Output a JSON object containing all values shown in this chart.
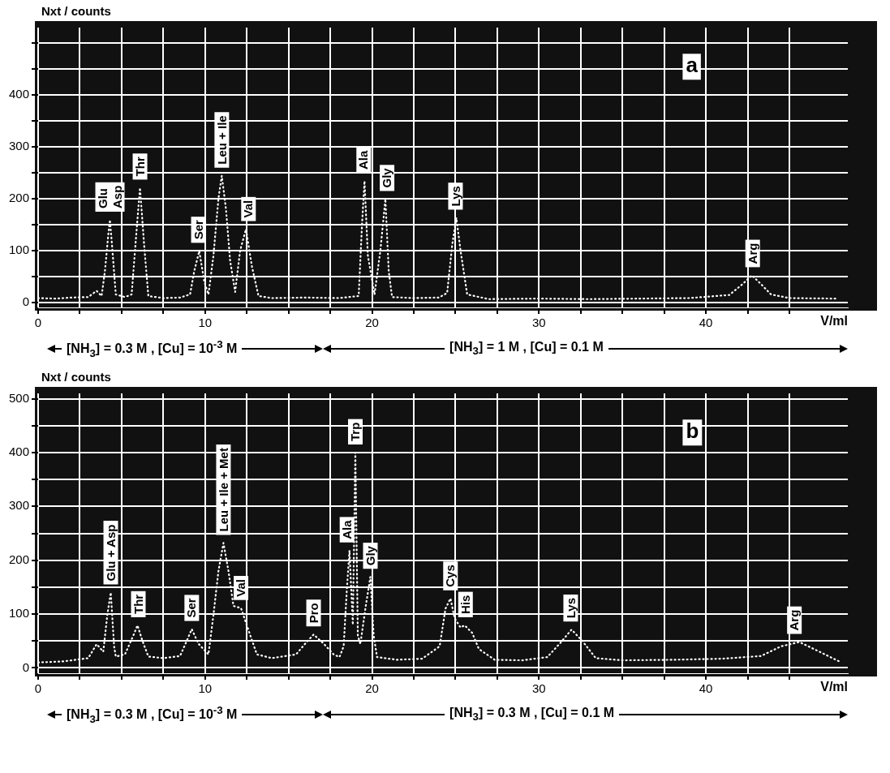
{
  "chart_data": [
    {
      "type": "line",
      "title": "a",
      "ylabel": "Nxt / counts",
      "xlabel": "V/ml",
      "line_style": "dotted",
      "marker": "none",
      "grid": true,
      "legend": false,
      "xlim": [
        0,
        48.5
      ],
      "xticks": [
        0,
        {
          "value": 2.5,
          "label": null
        },
        {
          "value": 5,
          "label": null
        },
        {
          "value": 7.5,
          "label": null
        },
        10,
        {
          "value": 12.5,
          "label": null
        },
        {
          "value": 15,
          "label": null
        },
        {
          "value": 17.5,
          "label": null
        },
        20,
        {
          "value": 22.5,
          "label": null
        },
        {
          "value": 25,
          "label": null
        },
        {
          "value": 27.5,
          "label": null
        },
        30,
        {
          "value": 32.5,
          "label": null
        },
        {
          "value": 35,
          "label": null
        },
        {
          "value": 37.5,
          "label": null
        },
        40,
        {
          "value": 42.5,
          "label": null
        },
        {
          "value": 45,
          "label": null
        }
      ],
      "ylim": [
        -10,
        530
      ],
      "yticks": [
        0,
        {
          "value": 50,
          "label": null
        },
        100,
        {
          "value": 150,
          "label": null
        },
        200,
        {
          "value": 250,
          "label": null
        },
        300,
        {
          "value": 350,
          "label": null
        },
        400,
        {
          "value": 450,
          "label": null
        },
        {
          "value": 500,
          "label": null
        }
      ],
      "series": [
        {
          "color": "#ffffff",
          "x": [
            0,
            1,
            2,
            3,
            3.5,
            3.8,
            4.0,
            4.2,
            4.3,
            4.45,
            4.65,
            5.2,
            5.6,
            5.85,
            6.1,
            6.35,
            6.6,
            7.5,
            8.5,
            9.1,
            9.35,
            9.65,
            9.95,
            10.2,
            10.5,
            10.8,
            11.0,
            11.25,
            11.5,
            11.8,
            12.1,
            12.45,
            12.8,
            13.2,
            14,
            16,
            18,
            19.2,
            19.4,
            19.55,
            19.75,
            20.15,
            20.5,
            20.8,
            21.0,
            21.2,
            22.5,
            24,
            24.5,
            24.8,
            25.05,
            25.3,
            25.7,
            27,
            30,
            33,
            36,
            39,
            41.4,
            42.2,
            42.75,
            43.3,
            43.9,
            45,
            47.8
          ],
          "values": [
            8,
            7,
            9,
            10,
            22,
            12,
            60,
            130,
            159,
            100,
            15,
            10,
            15,
            120,
            221,
            110,
            12,
            8,
            9,
            15,
            60,
            99,
            40,
            15,
            90,
            200,
            244,
            180,
            80,
            20,
            100,
            141,
            70,
            12,
            8,
            9,
            8,
            12,
            150,
            234,
            90,
            15,
            100,
            199,
            60,
            10,
            8,
            9,
            18,
            110,
            163,
            100,
            15,
            6,
            7,
            6,
            7,
            8,
            14,
            35,
            52,
            35,
            15,
            8,
            7
          ]
        }
      ],
      "annotations": [
        {
          "text": "Glu\nAsp",
          "x": 4.3,
          "y": 159
        },
        {
          "text": "Thr",
          "x": 6.1,
          "y": 221
        },
        {
          "text": "Ser",
          "x": 9.6,
          "y": 99
        },
        {
          "text": "Leu + Ile",
          "x": 11.0,
          "y": 244
        },
        {
          "text": "Val",
          "x": 12.6,
          "y": 141
        },
        {
          "text": "Ala",
          "x": 19.5,
          "y": 234
        },
        {
          "text": "Gly",
          "x": 20.9,
          "y": 199
        },
        {
          "text": "Lys",
          "x": 25.0,
          "y": 163
        },
        {
          "text": "Arg",
          "x": 42.8,
          "y": 52
        },
        "[NH$_{3}$] = 0.3 M , [Cu] = 10$^{-3}$ M",
        "[NH$_{3}$] = 1 M , [Cu] = 0.1 M"
      ]
    },
    {
      "type": "line",
      "title": "b",
      "ylabel": "Nxt / counts",
      "xlabel": "V/ml",
      "line_style": "dotted",
      "marker": "none",
      "grid": true,
      "legend": false,
      "xlim": [
        0,
        48.5
      ],
      "xticks": [
        0,
        {
          "value": 2.5,
          "label": null
        },
        {
          "value": 5,
          "label": null
        },
        {
          "value": 7.5,
          "label": null
        },
        10,
        {
          "value": 12.5,
          "label": null
        },
        {
          "value": 15,
          "label": null
        },
        {
          "value": 17.5,
          "label": null
        },
        20,
        {
          "value": 22.5,
          "label": null
        },
        {
          "value": 25,
          "label": null
        },
        {
          "value": 27.5,
          "label": null
        },
        30,
        {
          "value": 32.5,
          "label": null
        },
        {
          "value": 35,
          "label": null
        },
        {
          "value": 37.5,
          "label": null
        },
        40,
        {
          "value": 42.5,
          "label": null
        },
        {
          "value": 45,
          "label": null
        }
      ],
      "ylim": [
        -10,
        510
      ],
      "yticks": [
        0,
        {
          "value": 50,
          "label": null
        },
        100,
        {
          "value": 150,
          "label": null
        },
        200,
        {
          "value": 250,
          "label": null
        },
        300,
        {
          "value": 350,
          "label": null
        },
        400,
        {
          "value": 450,
          "label": null
        },
        500
      ],
      "series": [
        {
          "color": "#ffffff",
          "x": [
            0,
            1.5,
            3,
            3.5,
            3.9,
            4.15,
            4.35,
            4.55,
            4.65,
            5.2,
            5.7,
            5.95,
            6.25,
            6.6,
            7.5,
            8.5,
            8.9,
            9.2,
            9.6,
            10.2,
            10.5,
            10.8,
            11.1,
            11.4,
            11.7,
            12.15,
            12.6,
            13.1,
            14,
            15.45,
            16.0,
            16.5,
            17.1,
            17.7,
            18.05,
            18.3,
            18.5,
            18.65,
            18.85,
            19.0,
            19.15,
            19.3,
            19.6,
            19.9,
            20.1,
            20.3,
            21.5,
            23,
            24.05,
            24.4,
            24.7,
            24.95,
            25.3,
            25.55,
            26.0,
            26.4,
            27.35,
            29,
            30.5,
            31.3,
            31.95,
            32.6,
            33.4,
            35,
            38,
            41,
            43.3,
            44.5,
            45.6,
            46.8,
            48.05
          ],
          "values": [
            10,
            12,
            18,
            44,
            30,
            100,
            140,
            40,
            21,
            25,
            60,
            79,
            50,
            21,
            18,
            22,
            50,
            72,
            45,
            25,
            98,
            180,
            232,
            180,
            115,
            111,
            70,
            25,
            18,
            25,
            45,
            62,
            45,
            25,
            20,
            40,
            150,
            218,
            80,
            400,
            60,
            44,
            110,
            169,
            60,
            20,
            15,
            17,
            40,
            110,
            129,
            92,
            75,
            79,
            65,
            35,
            15,
            14,
            20,
            47,
            71,
            50,
            18,
            14,
            15,
            17,
            22,
            40,
            48,
            30,
            11
          ]
        }
      ],
      "annotations": [
        {
          "text": "Glu + Asp",
          "x": 4.35,
          "y": 140
        },
        {
          "text": "Thr",
          "x": 6.0,
          "y": 79
        },
        {
          "text": "Ser",
          "x": 9.2,
          "y": 72
        },
        {
          "text": "Leu + Ile + Met",
          "x": 11.1,
          "y": 232
        },
        {
          "text": "Val",
          "x": 12.15,
          "y": 111
        },
        {
          "text": "Pro",
          "x": 16.5,
          "y": 62
        },
        {
          "text": "Ala",
          "x": 18.5,
          "y": 218
        },
        {
          "text": "Trp",
          "x": 19.0,
          "y": 400
        },
        {
          "text": "Gly",
          "x": 19.9,
          "y": 169
        },
        {
          "text": "Cys",
          "x": 24.7,
          "y": 129
        },
        {
          "text": "His",
          "x": 25.6,
          "y": 79
        },
        {
          "text": "Lys",
          "x": 31.9,
          "y": 71
        },
        {
          "text": "Arg",
          "x": 45.3,
          "y": 48
        },
        "[NH$_{3}$] = 0.3 M , [Cu] = 10$^{-3}$ M",
        "[NH$_{3}$] = 0.3 M , [Cu] = 0.1 M"
      ]
    }
  ]
}
